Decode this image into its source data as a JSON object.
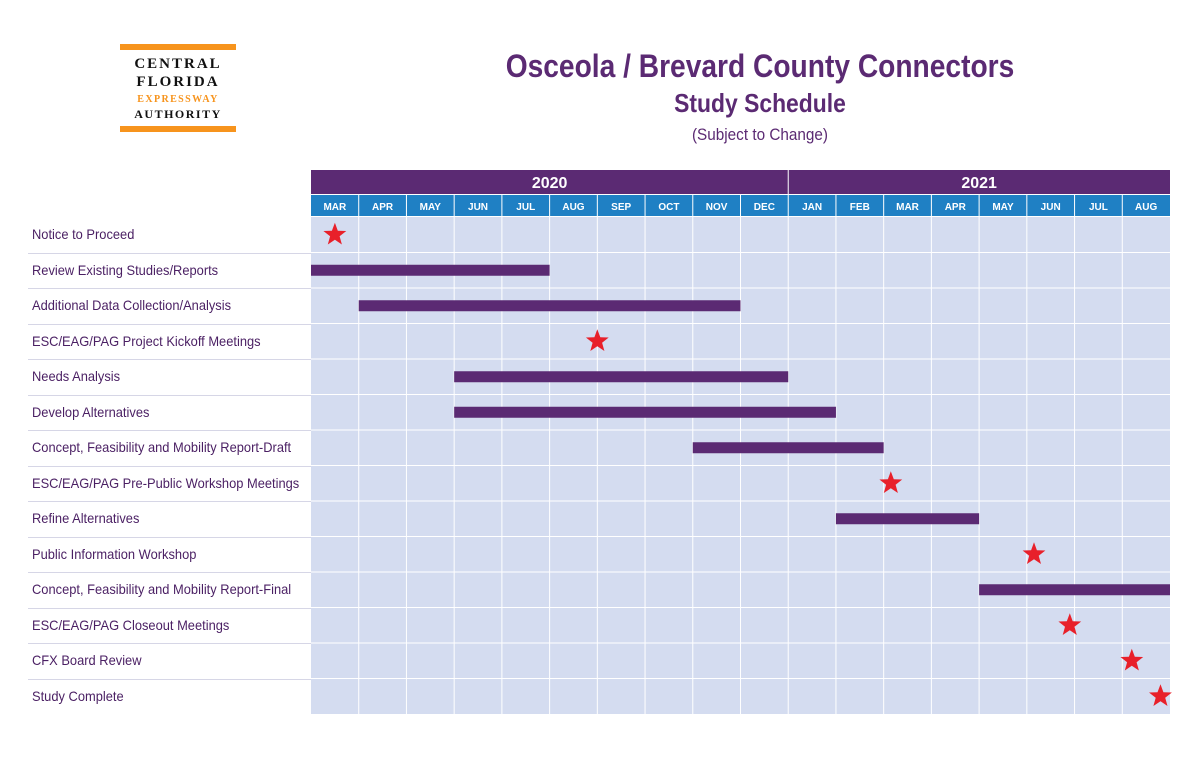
{
  "logo": {
    "line1": "CENTRAL",
    "line2": "FLORIDA",
    "line3": "EXPRESSWAY",
    "line4": "AUTHORITY"
  },
  "header": {
    "title": "Osceola / Brevard County Connectors",
    "subtitle": "Study Schedule",
    "note": "(Subject to Change)"
  },
  "colors": {
    "year_band": "#5b2a73",
    "month_band": "#1f80c4",
    "grid_bg": "#d4dcf0",
    "bar": "#5b2a73",
    "milestone": "#e8202a"
  },
  "chart_data": {
    "type": "gantt",
    "years": [
      {
        "label": "2020",
        "start": 0,
        "end": 10
      },
      {
        "label": "2021",
        "start": 10,
        "end": 18
      }
    ],
    "months": [
      "MAR",
      "APR",
      "MAY",
      "JUN",
      "JUL",
      "AUG",
      "SEP",
      "OCT",
      "NOV",
      "DEC",
      "JAN",
      "FEB",
      "MAR",
      "APR",
      "MAY",
      "JUN",
      "JUL",
      "AUG"
    ],
    "tasks": [
      {
        "label": "Notice to Proceed",
        "kind": "milestone",
        "at": 0.5
      },
      {
        "label": "Review Existing Studies/Reports",
        "kind": "bar",
        "start": 0,
        "end": 5
      },
      {
        "label": "Additional Data Collection/Analysis",
        "kind": "bar",
        "start": 1,
        "end": 9
      },
      {
        "label": "ESC/EAG/PAG Project Kickoff Meetings",
        "kind": "milestone",
        "at": 6
      },
      {
        "label": "Needs Analysis",
        "kind": "bar",
        "start": 3,
        "end": 10
      },
      {
        "label": "Develop Alternatives",
        "kind": "bar",
        "start": 3,
        "end": 11
      },
      {
        "label": "Concept, Feasibility and Mobility Report-Draft",
        "kind": "bar",
        "start": 8,
        "end": 12
      },
      {
        "label": "ESC/EAG/PAG Pre-Public Workshop Meetings",
        "kind": "milestone",
        "at": 12.15
      },
      {
        "label": "Refine Alternatives",
        "kind": "bar",
        "start": 11,
        "end": 14
      },
      {
        "label": "Public Information Workshop",
        "kind": "milestone",
        "at": 15.15
      },
      {
        "label": "Concept, Feasibility and Mobility Report-Final",
        "kind": "bar",
        "start": 14,
        "end": 18
      },
      {
        "label": "ESC/EAG/PAG Closeout Meetings",
        "kind": "milestone",
        "at": 15.9
      },
      {
        "label": "CFX Board Review",
        "kind": "milestone",
        "at": 17.2
      },
      {
        "label": "Study Complete",
        "kind": "milestone",
        "at": 17.8
      }
    ]
  }
}
